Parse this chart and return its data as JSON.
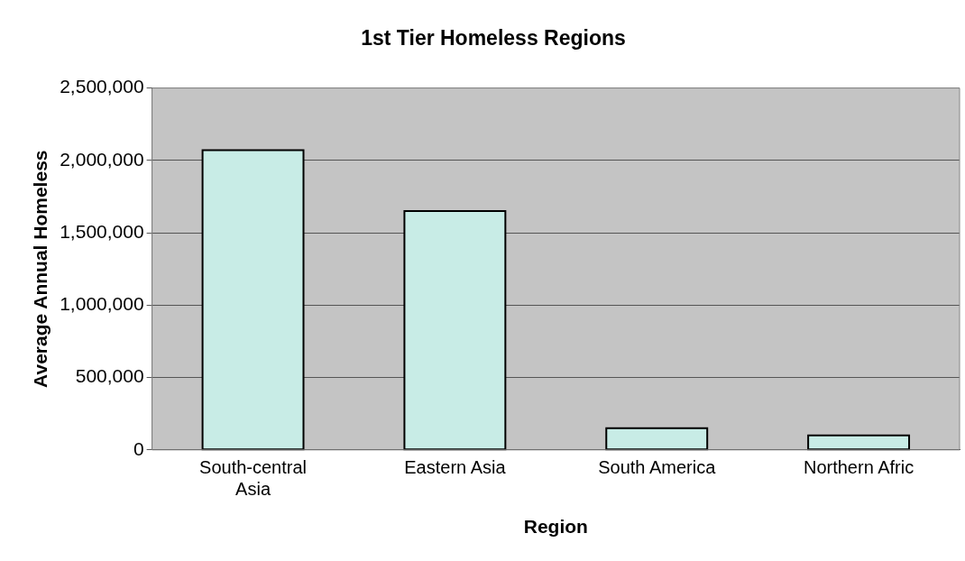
{
  "chart_data": {
    "type": "bar",
    "title": "1st Tier Homeless Regions",
    "xlabel": "Region",
    "ylabel": "Average Annual Homeless",
    "categories": [
      "South-central Asia",
      "Eastern Asia",
      "South America",
      "Northern Afric"
    ],
    "values": [
      2070000,
      1650000,
      150000,
      100000
    ],
    "color": "#c8ece6",
    "ylim": [
      0,
      2500000
    ],
    "yticks": [
      {
        "value": 0,
        "label": "0"
      },
      {
        "value": 500000,
        "label": "500,000"
      },
      {
        "value": 1000000,
        "label": "1,000,000"
      },
      {
        "value": 1500000,
        "label": "1,500,000"
      },
      {
        "value": 2000000,
        "label": "2,000,000"
      },
      {
        "value": 2500000,
        "label": "2,500,000"
      }
    ],
    "grid": "y",
    "legend": false
  }
}
